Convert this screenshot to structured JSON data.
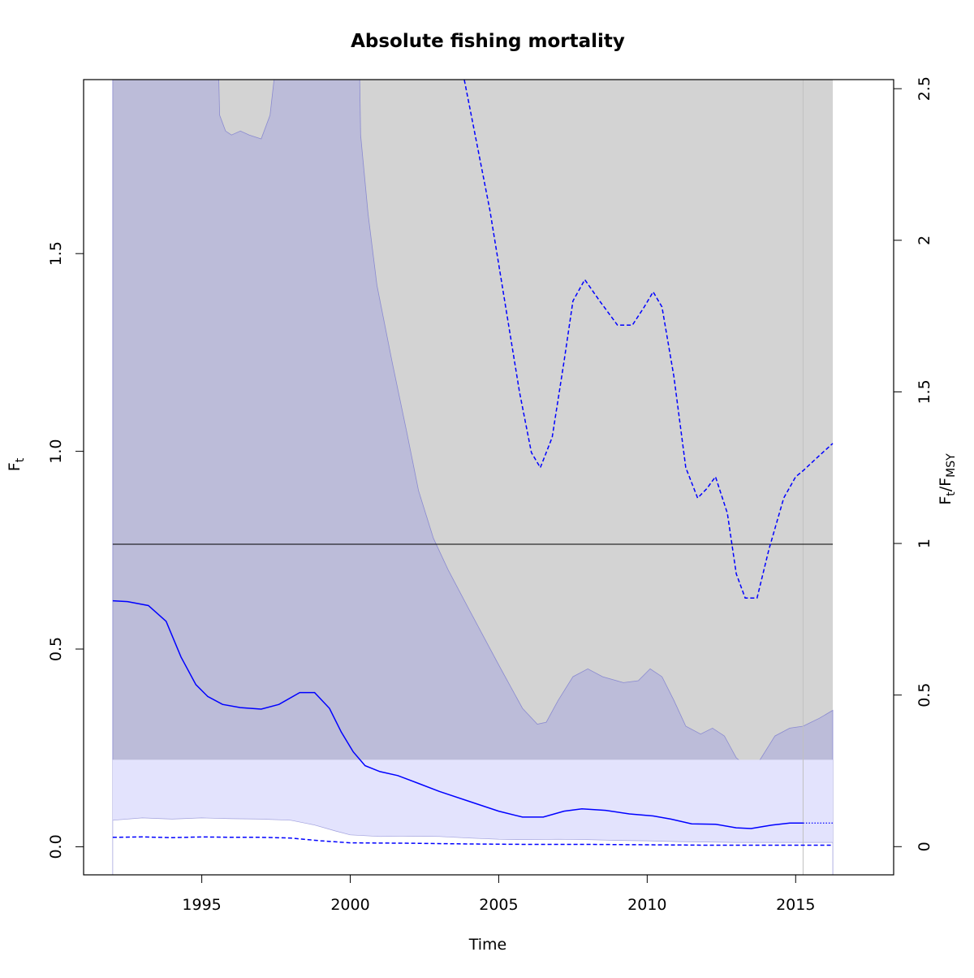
{
  "chart_data": {
    "type": "line",
    "title": "Absolute fishing mortality",
    "xlabel": "Time",
    "ylabel_left": {
      "base": "F",
      "sub": "t"
    },
    "ylabel_right": {
      "base": "F",
      "sub1": "t",
      "sep": "/F",
      "sub2": "MSY"
    },
    "xlim": [
      1991.02,
      2018.3
    ],
    "ylim_left": [
      -0.071,
      1.94
    ],
    "ylim_right": [
      -0.093,
      2.53
    ],
    "x_ticks": [
      {
        "value": 1995,
        "label": "1995"
      },
      {
        "value": 2000,
        "label": "2000"
      },
      {
        "value": 2005,
        "label": "2005"
      },
      {
        "value": 2010,
        "label": "2010"
      },
      {
        "value": 2015,
        "label": "2015"
      }
    ],
    "y_ticks_left": [
      {
        "value": 0.0,
        "label": "0.0"
      },
      {
        "value": 0.5,
        "label": "0.5"
      },
      {
        "value": 1.0,
        "label": "1.0"
      },
      {
        "value": 1.5,
        "label": "1.5"
      }
    ],
    "y_ticks_right": [
      {
        "value": 0,
        "label": "0"
      },
      {
        "value": 0.5,
        "label": "0.5"
      },
      {
        "value": 1,
        "label": "1"
      },
      {
        "value": 1.5,
        "label": "1.5"
      },
      {
        "value": 2,
        "label": "2"
      },
      {
        "value": 2.5,
        "label": "2.5"
      }
    ],
    "grid": false,
    "legend": "none",
    "last_observation_year": 2015.25,
    "colors": {
      "estimate": "#0000ff",
      "ci_fill": "#bcbcd9",
      "ratio_ci_fill": "#d3d3d3",
      "fmsy_ci_fill": "#e3e3fd",
      "reference_line": "#000000",
      "frame": "#000000"
    },
    "fmsy_reference": {
      "ratio": 1.0,
      "F": 0.765
    },
    "fmsy_ci": [
      0.0,
      0.22
    ],
    "series": [
      {
        "axis": "left",
        "style": "solid",
        "extends_dotted_to": 2016.25,
        "values": [
          [
            1992.0,
            0.622
          ],
          [
            1992.5,
            0.62
          ],
          [
            1993.2,
            0.61
          ],
          [
            1993.8,
            0.57
          ],
          [
            1994.3,
            0.48
          ],
          [
            1994.8,
            0.41
          ],
          [
            1995.2,
            0.38
          ],
          [
            1995.7,
            0.36
          ],
          [
            1996.3,
            0.352
          ],
          [
            1997.0,
            0.348
          ],
          [
            1997.6,
            0.36
          ],
          [
            1998.3,
            0.39
          ],
          [
            1998.8,
            0.39
          ],
          [
            1999.3,
            0.35
          ],
          [
            1999.7,
            0.29
          ],
          [
            2000.1,
            0.24
          ],
          [
            2000.5,
            0.205
          ],
          [
            2001.0,
            0.19
          ],
          [
            2001.6,
            0.18
          ],
          [
            2002.3,
            0.16
          ],
          [
            2003.0,
            0.14
          ],
          [
            2004.0,
            0.115
          ],
          [
            2005.0,
            0.09
          ],
          [
            2005.8,
            0.075
          ],
          [
            2006.5,
            0.075
          ],
          [
            2007.2,
            0.09
          ],
          [
            2007.8,
            0.096
          ],
          [
            2008.6,
            0.092
          ],
          [
            2009.4,
            0.083
          ],
          [
            2010.2,
            0.078
          ],
          [
            2010.8,
            0.07
          ],
          [
            2011.5,
            0.058
          ],
          [
            2012.3,
            0.057
          ],
          [
            2013.0,
            0.048
          ],
          [
            2013.5,
            0.046
          ],
          [
            2014.2,
            0.055
          ],
          [
            2014.8,
            0.06
          ],
          [
            2015.25,
            0.06
          ]
        ]
      },
      {
        "axis": "left",
        "style": "dashed",
        "values": [
          [
            1992.0,
            0.024
          ],
          [
            1993.0,
            0.025
          ],
          [
            1994.0,
            0.023
          ],
          [
            1995.0,
            0.025
          ],
          [
            1996.0,
            0.024
          ],
          [
            1997.0,
            0.024
          ],
          [
            1998.0,
            0.022
          ],
          [
            1999.0,
            0.015
          ],
          [
            2000.0,
            0.01
          ],
          [
            2002.0,
            0.009
          ],
          [
            2004.0,
            0.007
          ],
          [
            2006.0,
            0.006
          ],
          [
            2008.0,
            0.006
          ],
          [
            2010.0,
            0.005
          ],
          [
            2012.0,
            0.004
          ],
          [
            2014.0,
            0.004
          ],
          [
            2016.25,
            0.004
          ]
        ]
      },
      {
        "axis": "right",
        "style": "dashed",
        "values": [
          [
            2003.8,
            2.55
          ],
          [
            2004.2,
            2.35
          ],
          [
            2004.7,
            2.1
          ],
          [
            2005.2,
            1.8
          ],
          [
            2005.7,
            1.5
          ],
          [
            2006.1,
            1.3
          ],
          [
            2006.4,
            1.25
          ],
          [
            2006.8,
            1.35
          ],
          [
            2007.2,
            1.6
          ],
          [
            2007.5,
            1.8
          ],
          [
            2007.9,
            1.87
          ],
          [
            2008.4,
            1.8
          ],
          [
            2009.0,
            1.72
          ],
          [
            2009.5,
            1.72
          ],
          [
            2009.9,
            1.78
          ],
          [
            2010.2,
            1.83
          ],
          [
            2010.5,
            1.78
          ],
          [
            2010.9,
            1.55
          ],
          [
            2011.3,
            1.25
          ],
          [
            2011.7,
            1.15
          ],
          [
            2012.0,
            1.18
          ],
          [
            2012.3,
            1.22
          ],
          [
            2012.7,
            1.1
          ],
          [
            2013.0,
            0.9
          ],
          [
            2013.3,
            0.82
          ],
          [
            2013.7,
            0.82
          ],
          [
            2014.1,
            0.98
          ],
          [
            2014.6,
            1.15
          ],
          [
            2015.0,
            1.22
          ],
          [
            2015.25,
            1.24
          ],
          [
            2015.8,
            1.29
          ],
          [
            2016.25,
            1.33
          ]
        ]
      }
    ],
    "ci_band": {
      "axis": "left",
      "upper": [
        [
          1992.0,
          2.5
        ],
        [
          1995.4,
          2.5
        ],
        [
          1995.6,
          1.85
        ],
        [
          1995.8,
          1.81
        ],
        [
          1996.0,
          1.8
        ],
        [
          1996.3,
          1.81
        ],
        [
          1996.6,
          1.8
        ],
        [
          1997.0,
          1.79
        ],
        [
          1997.3,
          1.85
        ],
        [
          1997.6,
          2.05
        ],
        [
          1997.7,
          2.5
        ],
        [
          2000.2,
          2.5
        ],
        [
          2000.35,
          1.8
        ],
        [
          2000.6,
          1.6
        ],
        [
          2000.9,
          1.42
        ],
        [
          2001.4,
          1.23
        ],
        [
          2001.9,
          1.05
        ],
        [
          2002.3,
          0.9
        ],
        [
          2002.8,
          0.78
        ],
        [
          2003.3,
          0.7
        ],
        [
          2004.0,
          0.6
        ],
        [
          2005.0,
          0.46
        ],
        [
          2005.8,
          0.35
        ],
        [
          2006.3,
          0.31
        ],
        [
          2006.6,
          0.315
        ],
        [
          2007.0,
          0.37
        ],
        [
          2007.5,
          0.43
        ],
        [
          2008.0,
          0.45
        ],
        [
          2008.5,
          0.43
        ],
        [
          2009.2,
          0.415
        ],
        [
          2009.7,
          0.42
        ],
        [
          2010.1,
          0.45
        ],
        [
          2010.5,
          0.43
        ],
        [
          2010.9,
          0.37
        ],
        [
          2011.3,
          0.305
        ],
        [
          2011.8,
          0.285
        ],
        [
          2012.2,
          0.3
        ],
        [
          2012.6,
          0.28
        ],
        [
          2013.0,
          0.225
        ],
        [
          2013.4,
          0.2
        ],
        [
          2013.8,
          0.22
        ],
        [
          2014.3,
          0.28
        ],
        [
          2014.8,
          0.3
        ],
        [
          2015.25,
          0.305
        ],
        [
          2015.8,
          0.325
        ],
        [
          2016.25,
          0.345
        ]
      ],
      "lower": [
        [
          1992.0,
          0.067
        ],
        [
          1993.0,
          0.073
        ],
        [
          1994.0,
          0.07
        ],
        [
          1995.0,
          0.073
        ],
        [
          1996.0,
          0.071
        ],
        [
          1997.0,
          0.07
        ],
        [
          1998.0,
          0.067
        ],
        [
          1998.8,
          0.055
        ],
        [
          1999.5,
          0.04
        ],
        [
          2000.0,
          0.03
        ],
        [
          2001.0,
          0.026
        ],
        [
          2002.0,
          0.027
        ],
        [
          2003.0,
          0.026
        ],
        [
          2004.0,
          0.022
        ],
        [
          2005.0,
          0.019
        ],
        [
          2006.0,
          0.018
        ],
        [
          2007.0,
          0.019
        ],
        [
          2008.0,
          0.018
        ],
        [
          2009.0,
          0.016
        ],
        [
          2010.0,
          0.015
        ],
        [
          2011.0,
          0.013
        ],
        [
          2012.0,
          0.012
        ],
        [
          2013.0,
          0.011
        ],
        [
          2014.0,
          0.011
        ],
        [
          2015.0,
          0.011
        ],
        [
          2016.25,
          0.011
        ]
      ]
    },
    "ratio_band_dashed_upper_display": true
  }
}
